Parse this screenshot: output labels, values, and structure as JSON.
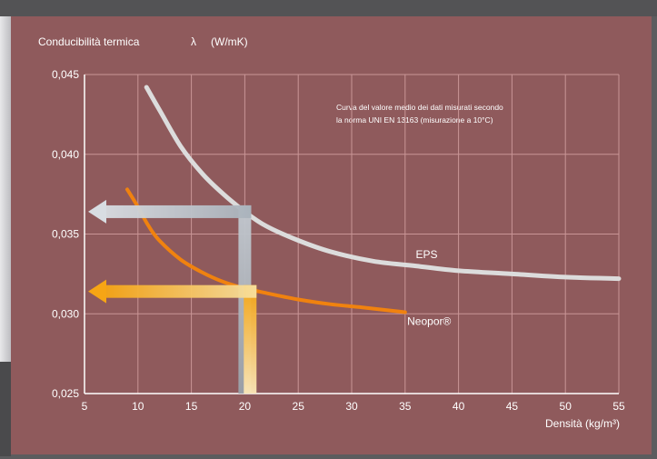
{
  "chart_data": {
    "type": "line",
    "title": "Conducibilità termica",
    "ylabel": "Conducibilità termica λ (W/mK)",
    "ylabel_parts": {
      "name": "Conducibilità termica",
      "symbol": "λ",
      "unit": "(W/mK)"
    },
    "xlabel": "Densità (kg/m³)",
    "xlim": [
      5,
      55
    ],
    "ylim": [
      0.025,
      0.045
    ],
    "grid": true,
    "x_ticks": [
      "5",
      "10",
      "15",
      "20",
      "25",
      "30",
      "35",
      "40",
      "45",
      "50",
      "55"
    ],
    "y_ticks": [
      "0,025",
      "0,030",
      "0,035",
      "0,040",
      "0,045"
    ],
    "annotation": {
      "line1": "Curva del valore medio dei dati misurati secondo",
      "line2": "la norma UNI EN 13163 (misurazione a 10°C)"
    },
    "series": [
      {
        "name": "EPS",
        "color": "#dcdcdc",
        "x": [
          10.8,
          12,
          14,
          16,
          18,
          20,
          22,
          25,
          28,
          32,
          36,
          40,
          45,
          50,
          55
        ],
        "y": [
          0.0442,
          0.0428,
          0.0405,
          0.0388,
          0.0375,
          0.0364,
          0.0355,
          0.0346,
          0.0339,
          0.0333,
          0.033,
          0.0327,
          0.0325,
          0.0323,
          0.0322
        ]
      },
      {
        "name": "Neopor®",
        "color": "#f0820f",
        "x": [
          9.0,
          10,
          11,
          12,
          14,
          16,
          18,
          20,
          22,
          25,
          28,
          31,
          35
        ],
        "y": [
          0.0378,
          0.0367,
          0.0355,
          0.0346,
          0.0334,
          0.0326,
          0.032,
          0.0316,
          0.0313,
          0.0309,
          0.0306,
          0.0304,
          0.0301
        ]
      }
    ],
    "readouts": [
      {
        "series": "EPS",
        "x": 20,
        "y": 0.0364,
        "color": "#b8c0c8"
      },
      {
        "series": "Neopor®",
        "x": 20.5,
        "y": 0.0314,
        "color": "#f5a623"
      }
    ],
    "colors": {
      "background": "#8f5a5c",
      "grid": "#c99596",
      "text": "#ffffff"
    }
  }
}
